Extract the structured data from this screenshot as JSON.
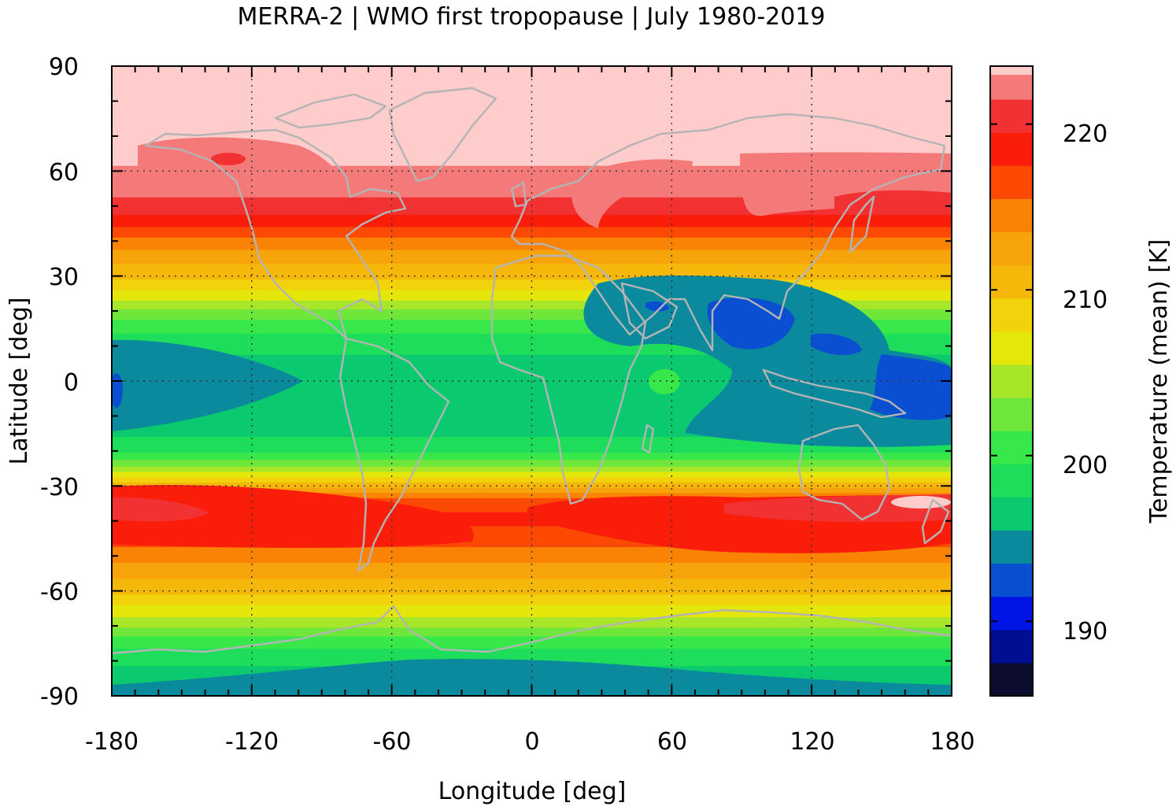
{
  "chart_data": {
    "type": "heatmap",
    "title": "MERRA-2 | WMO first tropopause | July 1980-2019",
    "xlabel": "Longitude [deg]",
    "ylabel": "Latitude [deg]",
    "xlim": [
      -180,
      180
    ],
    "ylim": [
      -90,
      90
    ],
    "x_ticks": [
      -180,
      -120,
      -60,
      0,
      60,
      120,
      180
    ],
    "x_tick_labels": [
      "-180",
      "-120",
      "-60",
      "0",
      "60",
      "120",
      "180"
    ],
    "y_ticks": [
      -90,
      -60,
      -30,
      0,
      30,
      60,
      90
    ],
    "y_tick_labels": [
      "-90",
      "-60",
      "-30",
      "0",
      "30",
      "60",
      "90"
    ],
    "grid": true,
    "colorbar": {
      "label": "Temperature (mean) [K]",
      "range": [
        185.5,
        223.5
      ],
      "ticks": [
        190,
        200,
        210,
        220
      ],
      "tick_labels": [
        "190",
        "200",
        "210",
        "220"
      ],
      "levels": [
        {
          "min": 185.5,
          "max": 187.5,
          "color": "#0d0d30"
        },
        {
          "min": 187.5,
          "max": 189.5,
          "color": "#000e94"
        },
        {
          "min": 189.5,
          "max": 191.5,
          "color": "#0014e6"
        },
        {
          "min": 191.5,
          "max": 193.5,
          "color": "#0a4ed2"
        },
        {
          "min": 193.5,
          "max": 195.5,
          "color": "#0a8a9c"
        },
        {
          "min": 195.5,
          "max": 197.5,
          "color": "#0ac96f"
        },
        {
          "min": 197.5,
          "max": 199.5,
          "color": "#1edd5a"
        },
        {
          "min": 199.5,
          "max": 201.5,
          "color": "#38e84a"
        },
        {
          "min": 201.5,
          "max": 203.5,
          "color": "#6ee63a"
        },
        {
          "min": 203.5,
          "max": 205.5,
          "color": "#a8e62a"
        },
        {
          "min": 205.5,
          "max": 207.5,
          "color": "#e5e60a"
        },
        {
          "min": 207.5,
          "max": 209.5,
          "color": "#f2d20a"
        },
        {
          "min": 209.5,
          "max": 211.5,
          "color": "#f5b80a"
        },
        {
          "min": 211.5,
          "max": 213.5,
          "color": "#f7a30a"
        },
        {
          "min": 213.5,
          "max": 215.5,
          "color": "#fa8205"
        },
        {
          "min": 215.5,
          "max": 217.5,
          "color": "#fc4a05"
        },
        {
          "min": 217.5,
          "max": 219.5,
          "color": "#fa1e0a"
        },
        {
          "min": 219.5,
          "max": 221.5,
          "color": "#f23232"
        },
        {
          "min": 221.5,
          "max": 223.0,
          "color": "#f47a7a"
        },
        {
          "min": 223.0,
          "max": 223.5,
          "color": "#ffcccc"
        }
      ]
    },
    "zonal_mean_profile": {
      "lat": [
        -90,
        -85,
        -80,
        -75,
        -70,
        -65,
        -60,
        -55,
        -50,
        -45,
        -40,
        -35,
        -30,
        -25,
        -20,
        -15,
        -10,
        -5,
        0,
        5,
        10,
        15,
        20,
        25,
        30,
        35,
        40,
        45,
        50,
        55,
        60,
        65,
        70,
        75,
        80,
        85,
        90
      ],
      "temperature": [
        195,
        196,
        198,
        200,
        204,
        207,
        210,
        212,
        214.5,
        216.5,
        218,
        217,
        211,
        204,
        199,
        197,
        196,
        196,
        196,
        197,
        198,
        200,
        203,
        207,
        210,
        212,
        215,
        218,
        221,
        222,
        222.5,
        224,
        224,
        224,
        224,
        224,
        224
      ]
    },
    "continent_outline_color": "#b4b4b4"
  }
}
